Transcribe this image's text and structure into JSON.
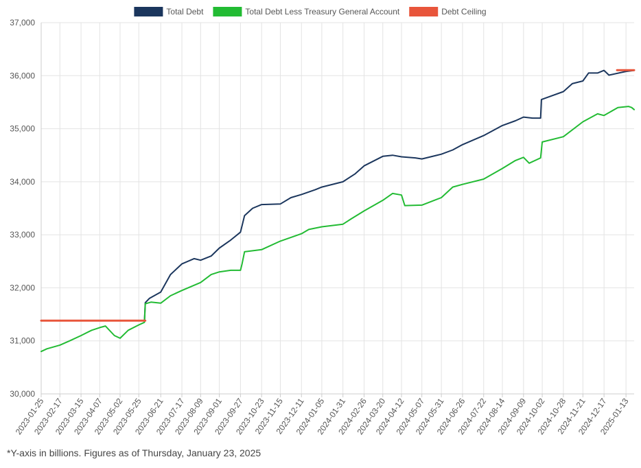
{
  "footnote": "*Y-axis in billions. Figures as of Thursday, January 23, 2025",
  "chart_data": {
    "type": "line",
    "title": "",
    "xlabel": "",
    "ylabel": "",
    "ylim": [
      30000,
      37000
    ],
    "yticks": [
      "30,000",
      "31,000",
      "32,000",
      "33,000",
      "34,000",
      "35,000",
      "36,000",
      "37,000"
    ],
    "grid": true,
    "legend_position": "top-center",
    "x_range": [
      "2023-01-25",
      "2025-01-23"
    ],
    "x_tick_labels": [
      "2023-01-25",
      "2023-02-17",
      "2023-03-15",
      "2023-04-07",
      "2023-05-02",
      "2023-05-25",
      "2023-06-21",
      "2023-07-17",
      "2023-08-09",
      "2023-09-01",
      "2023-09-27",
      "2023-10-23",
      "2023-11-15",
      "2023-12-11",
      "2024-01-05",
      "2024-01-31",
      "2024-02-26",
      "2024-03-20",
      "2024-04-12",
      "2024-05-07",
      "2024-05-31",
      "2024-06-26",
      "2024-07-22",
      "2024-08-14",
      "2024-09-09",
      "2024-10-02",
      "2024-10-28",
      "2024-11-21",
      "2024-12-17",
      "2025-01-13"
    ],
    "series": [
      {
        "name": "Total Debt",
        "color": "#1b365d",
        "points": [
          [
            "2023-01-25",
            31380
          ],
          [
            "2023-06-01",
            31380
          ],
          [
            "2023-06-02",
            31720
          ],
          [
            "2023-06-07",
            31800
          ],
          [
            "2023-06-21",
            31920
          ],
          [
            "2023-07-03",
            32250
          ],
          [
            "2023-07-17",
            32450
          ],
          [
            "2023-08-01",
            32550
          ],
          [
            "2023-08-09",
            32520
          ],
          [
            "2023-08-22",
            32600
          ],
          [
            "2023-09-01",
            32750
          ],
          [
            "2023-09-15",
            32900
          ],
          [
            "2023-09-27",
            33050
          ],
          [
            "2023-09-29",
            33170
          ],
          [
            "2023-10-02",
            33360
          ],
          [
            "2023-10-12",
            33500
          ],
          [
            "2023-10-23",
            33570
          ],
          [
            "2023-11-15",
            33580
          ],
          [
            "2023-11-28",
            33700
          ],
          [
            "2023-12-11",
            33760
          ],
          [
            "2023-12-28",
            33850
          ],
          [
            "2024-01-05",
            33900
          ],
          [
            "2024-01-31",
            34000
          ],
          [
            "2024-02-15",
            34150
          ],
          [
            "2024-02-26",
            34300
          ],
          [
            "2024-03-20",
            34480
          ],
          [
            "2024-04-01",
            34500
          ],
          [
            "2024-04-12",
            34470
          ],
          [
            "2024-04-29",
            34450
          ],
          [
            "2024-05-07",
            34430
          ],
          [
            "2024-05-31",
            34520
          ],
          [
            "2024-06-14",
            34600
          ],
          [
            "2024-06-26",
            34700
          ],
          [
            "2024-07-22",
            34870
          ],
          [
            "2024-08-14",
            35060
          ],
          [
            "2024-08-30",
            35150
          ],
          [
            "2024-09-09",
            35220
          ],
          [
            "2024-09-20",
            35200
          ],
          [
            "2024-09-30",
            35200
          ],
          [
            "2024-10-01",
            35550
          ],
          [
            "2024-10-10",
            35600
          ],
          [
            "2024-10-28",
            35700
          ],
          [
            "2024-11-08",
            35850
          ],
          [
            "2024-11-21",
            35900
          ],
          [
            "2024-11-28",
            36050
          ],
          [
            "2024-12-09",
            36050
          ],
          [
            "2024-12-17",
            36100
          ],
          [
            "2024-12-23",
            36010
          ],
          [
            "2025-01-13",
            36080
          ],
          [
            "2025-01-23",
            36100
          ]
        ]
      },
      {
        "name": "Total Debt Less Treasury General Account",
        "color": "#22bb33",
        "points": [
          [
            "2023-01-25",
            30800
          ],
          [
            "2023-02-01",
            30850
          ],
          [
            "2023-02-17",
            30920
          ],
          [
            "2023-03-01",
            31000
          ],
          [
            "2023-03-15",
            31100
          ],
          [
            "2023-03-28",
            31200
          ],
          [
            "2023-04-07",
            31250
          ],
          [
            "2023-04-14",
            31280
          ],
          [
            "2023-04-25",
            31100
          ],
          [
            "2023-05-02",
            31050
          ],
          [
            "2023-05-12",
            31200
          ],
          [
            "2023-05-25",
            31300
          ],
          [
            "2023-06-01",
            31350
          ],
          [
            "2023-06-02",
            31700
          ],
          [
            "2023-06-09",
            31730
          ],
          [
            "2023-06-21",
            31710
          ],
          [
            "2023-07-03",
            31850
          ],
          [
            "2023-07-17",
            31950
          ],
          [
            "2023-08-09",
            32100
          ],
          [
            "2023-08-22",
            32250
          ],
          [
            "2023-09-01",
            32300
          ],
          [
            "2023-09-15",
            32330
          ],
          [
            "2023-09-27",
            32330
          ],
          [
            "2023-09-29",
            32450
          ],
          [
            "2023-10-02",
            32680
          ],
          [
            "2023-10-23",
            32720
          ],
          [
            "2023-11-15",
            32880
          ],
          [
            "2023-12-11",
            33020
          ],
          [
            "2023-12-20",
            33100
          ],
          [
            "2024-01-05",
            33150
          ],
          [
            "2024-01-31",
            33200
          ],
          [
            "2024-02-10",
            33300
          ],
          [
            "2024-02-26",
            33450
          ],
          [
            "2024-03-20",
            33650
          ],
          [
            "2024-04-01",
            33780
          ],
          [
            "2024-04-12",
            33750
          ],
          [
            "2024-04-16",
            33550
          ],
          [
            "2024-05-07",
            33560
          ],
          [
            "2024-05-31",
            33700
          ],
          [
            "2024-06-14",
            33900
          ],
          [
            "2024-06-26",
            33950
          ],
          [
            "2024-07-22",
            34050
          ],
          [
            "2024-08-14",
            34250
          ],
          [
            "2024-08-30",
            34400
          ],
          [
            "2024-09-09",
            34460
          ],
          [
            "2024-09-16",
            34350
          ],
          [
            "2024-09-30",
            34450
          ],
          [
            "2024-10-02",
            34750
          ],
          [
            "2024-10-28",
            34850
          ],
          [
            "2024-11-21",
            35130
          ],
          [
            "2024-12-09",
            35280
          ],
          [
            "2024-12-17",
            35250
          ],
          [
            "2025-01-03",
            35400
          ],
          [
            "2025-01-16",
            35420
          ],
          [
            "2025-01-20",
            35400
          ],
          [
            "2025-01-23",
            35360
          ]
        ]
      },
      {
        "name": "Debt Ceiling",
        "color": "#e8553b",
        "segments": [
          [
            [
              "2023-01-25",
              31381
            ],
            [
              "2023-06-02",
              31381
            ]
          ],
          [
            [
              "2025-01-02",
              36104
            ],
            [
              "2025-01-23",
              36104
            ]
          ]
        ]
      }
    ]
  }
}
